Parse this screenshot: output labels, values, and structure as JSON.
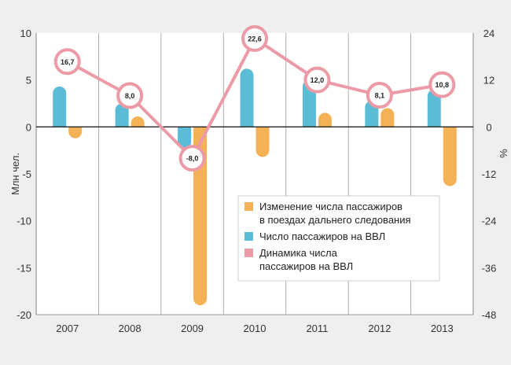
{
  "chart_data": {
    "type": "bar",
    "categories": [
      "2007",
      "2008",
      "2009",
      "2010",
      "2011",
      "2012",
      "2013"
    ],
    "series": [
      {
        "name": "Число пассажиров на ВВЛ",
        "axis": "left",
        "kind": "bar",
        "color": "#5bbcd6",
        "values": [
          4.3,
          2.5,
          -2.3,
          6.2,
          5.0,
          2.8,
          4.0
        ]
      },
      {
        "name": "Изменение числа пассажиров в поездах дальнего следования",
        "axis": "left",
        "kind": "bar",
        "color": "#f5b155",
        "values": [
          -1.0,
          0.8,
          -19.0,
          -3.2,
          1.5,
          2.0,
          -6.3
        ]
      },
      {
        "name": "Динамика числа пассажиров на ВВЛ",
        "axis": "right",
        "kind": "line",
        "color": "#ec9aa6",
        "values": [
          16.7,
          8.0,
          -8.0,
          22.6,
          12.0,
          8.1,
          10.8
        ],
        "labels": [
          "16,7",
          "8,0",
          "-8,0",
          "22,6",
          "12,0",
          "8,1",
          "10,8"
        ]
      }
    ],
    "y_left": {
      "label": "Млн чел.",
      "range": [
        -20,
        10
      ],
      "ticks": [
        10,
        5,
        0,
        -5,
        -10,
        -15,
        -20
      ]
    },
    "y_right": {
      "label": "%",
      "range": [
        -48,
        24
      ],
      "ticks": [
        24,
        12,
        0,
        -12,
        -24,
        -36,
        -48
      ]
    },
    "legend": {
      "placement": "center-right",
      "items": [
        {
          "lines": [
            "Изменение числа пассажиров",
            "в поездах дальнего следования"
          ],
          "color": "#f5b155"
        },
        {
          "lines": [
            "Число пассажиров на ВВЛ"
          ],
          "color": "#5bbcd6"
        },
        {
          "lines": [
            "Динамика числа",
            "пассажиров на ВВЛ"
          ],
          "color": "#ec9aa6"
        }
      ]
    },
    "grid": "vertical"
  }
}
